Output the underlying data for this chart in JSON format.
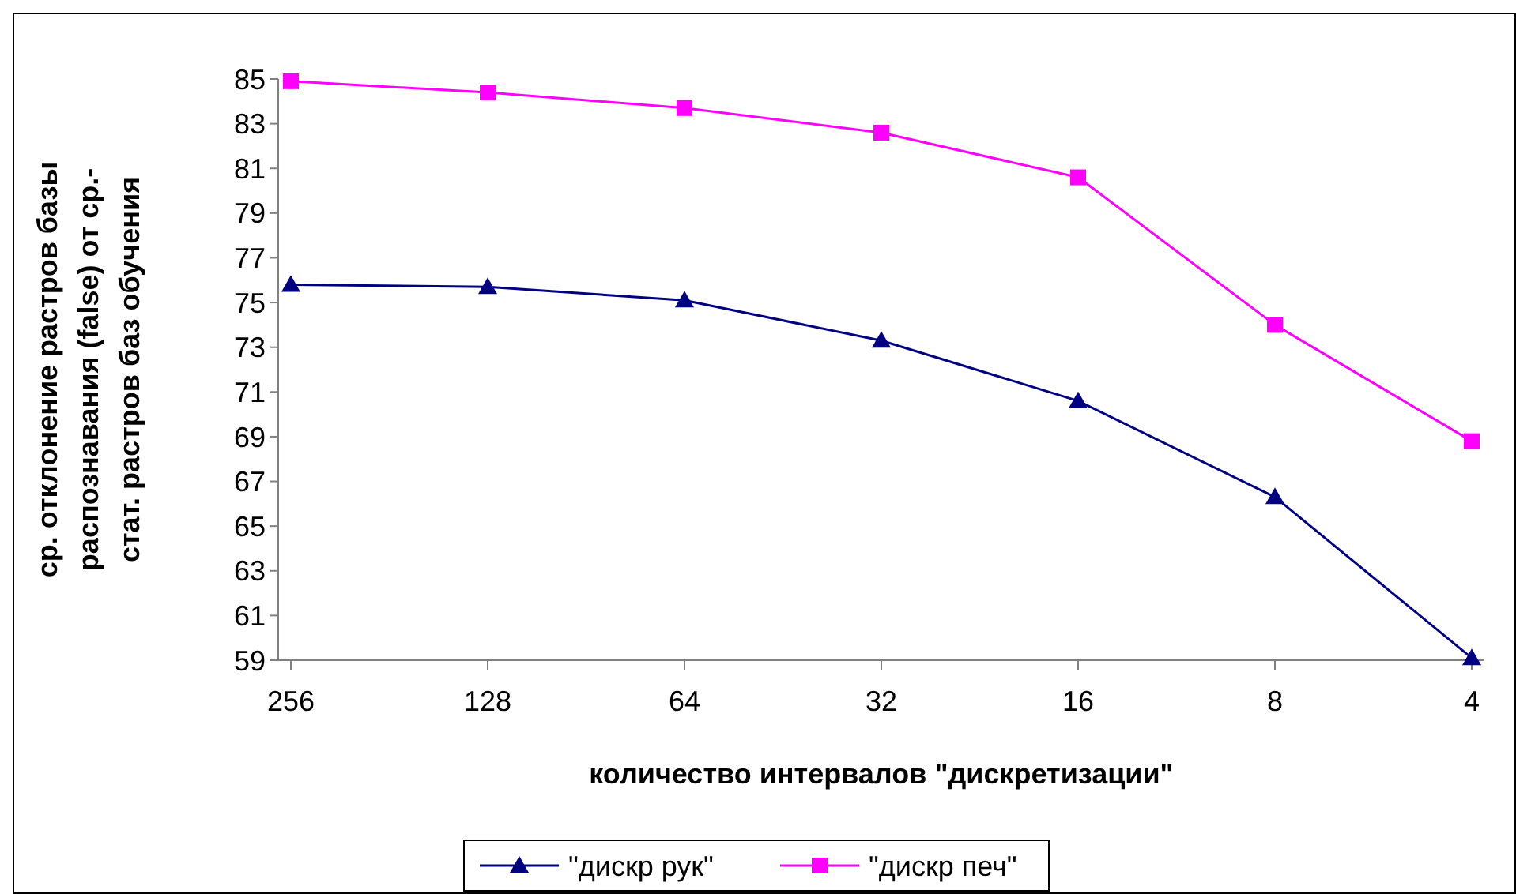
{
  "chart_data": {
    "type": "line",
    "xlabel": "количество интервалов \"дискретизации\"",
    "ylabel": "ср. отклонение растров базы распознавания (false) от ср.-стат. растров баз обучения",
    "categories": [
      "256",
      "128",
      "64",
      "32",
      "16",
      "8",
      "4"
    ],
    "ylim": [
      59,
      85
    ],
    "yticks": [
      59,
      61,
      63,
      65,
      67,
      69,
      71,
      73,
      75,
      77,
      79,
      81,
      83,
      85
    ],
    "grid": false,
    "legend": "bottom",
    "series": [
      {
        "name": "\"дискр рук\"",
        "color": "#000080",
        "marker": "triangle",
        "values": [
          75.8,
          75.7,
          75.1,
          73.3,
          70.6,
          66.3,
          59.1
        ]
      },
      {
        "name": "\"дискр печ\"",
        "color": "#ff00ff",
        "marker": "square",
        "values": [
          84.9,
          84.4,
          83.7,
          82.6,
          80.6,
          74.0,
          68.8
        ]
      }
    ]
  }
}
